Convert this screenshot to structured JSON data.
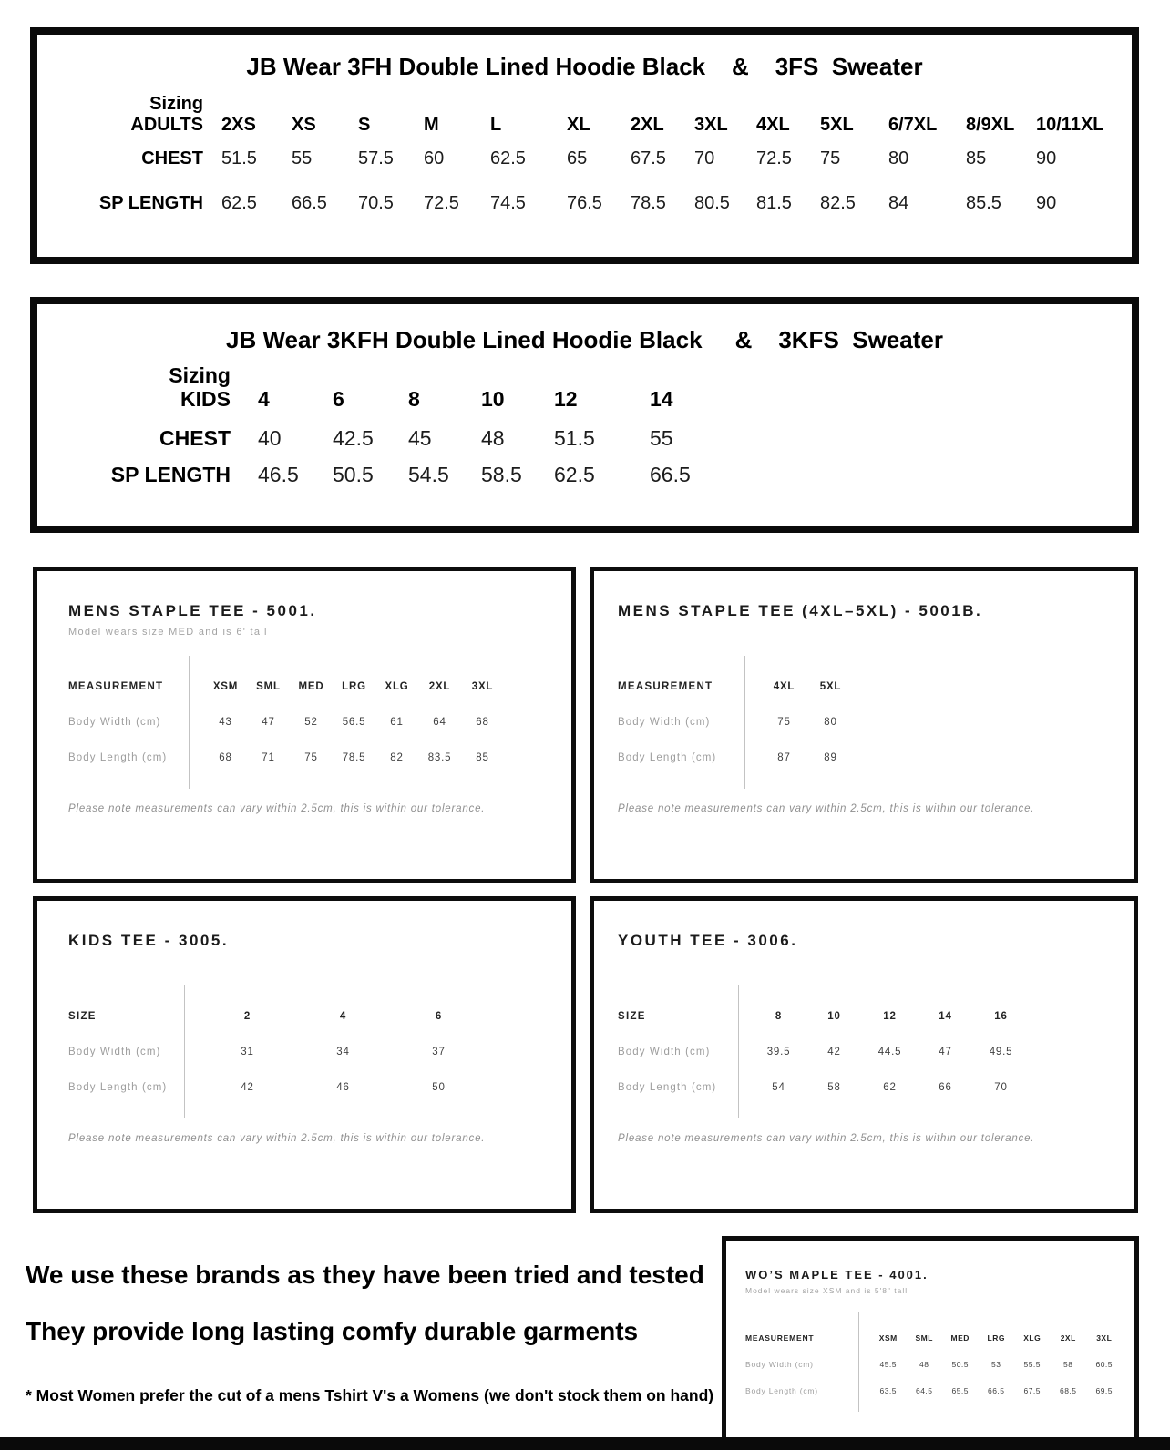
{
  "palette": {
    "border_black": "#0a0a0a",
    "text_black": "#000000",
    "muted_gray": "#9d9d9d",
    "value_gray": "#3f3f3f",
    "note_gray": "#8f8f8f"
  },
  "hoodie_adult": {
    "title": "JB Wear 3FH Double Lined Hoodie Black    &    3FS  Sweater",
    "sizing_label": "Sizing",
    "group_label": "ADULTS",
    "sizes": [
      "2XS",
      "XS",
      "S",
      "M",
      "L",
      "XL",
      "2XL",
      "3XL",
      "4XL",
      "5XL",
      "6/7XL",
      "8/9XL",
      "10/11XL"
    ],
    "rows": [
      {
        "label": "CHEST",
        "values": [
          "51.5",
          "55",
          "57.5",
          "60",
          "62.5",
          "65",
          "67.5",
          "70",
          "72.5",
          "75",
          "80",
          "85",
          "90"
        ]
      },
      {
        "label": "SP LENGTH",
        "values": [
          "62.5",
          "66.5",
          "70.5",
          "72.5",
          "74.5",
          "76.5",
          "78.5",
          "80.5",
          "81.5",
          "82.5",
          "84",
          "85.5",
          "90"
        ]
      }
    ]
  },
  "hoodie_kids": {
    "title": "JB Wear 3KFH Double Lined Hoodie Black     &    3KFS  Sweater",
    "sizing_label": "Sizing",
    "group_label": "KIDS",
    "sizes": [
      "4",
      "6",
      "8",
      "10",
      "12",
      "14"
    ],
    "rows": [
      {
        "label": "CHEST",
        "values": [
          "40",
          "42.5",
          "45",
          "48",
          "51.5",
          "55"
        ]
      },
      {
        "label": "SP LENGTH",
        "values": [
          "46.5",
          "50.5",
          "54.5",
          "58.5",
          "62.5",
          "66.5"
        ]
      }
    ]
  },
  "cards": [
    {
      "title": "MENS STAPLE TEE - 5001.",
      "subtitle": "Model wears size MED and is 6' tall",
      "header_label": "MEASUREMENT",
      "sizes": [
        "XSM",
        "SML",
        "MED",
        "LRG",
        "XLG",
        "2XL",
        "3XL"
      ],
      "rows": [
        {
          "label": "Body Width (cm)",
          "values": [
            "43",
            "47",
            "52",
            "56.5",
            "61",
            "64",
            "68"
          ]
        },
        {
          "label": "Body Length (cm)",
          "values": [
            "68",
            "71",
            "75",
            "78.5",
            "82",
            "83.5",
            "85"
          ]
        }
      ],
      "note": "Please note measurements can vary within 2.5cm, this is within our tolerance."
    },
    {
      "title": "MENS STAPLE TEE (4XL–5XL) - 5001B.",
      "subtitle": "",
      "header_label": "MEASUREMENT",
      "sizes": [
        "4XL",
        "5XL"
      ],
      "rows": [
        {
          "label": "Body Width (cm)",
          "values": [
            "75",
            "80"
          ]
        },
        {
          "label": "Body Length (cm)",
          "values": [
            "87",
            "89"
          ]
        }
      ],
      "note": "Please note measurements can vary within 2.5cm, this is within our tolerance."
    },
    {
      "title": "KIDS TEE - 3005.",
      "subtitle": "",
      "header_label": "SIZE",
      "sizes": [
        "2",
        "4",
        "6"
      ],
      "rows": [
        {
          "label": "Body Width (cm)",
          "values": [
            "31",
            "34",
            "37"
          ]
        },
        {
          "label": "Body Length (cm)",
          "values": [
            "42",
            "46",
            "50"
          ]
        }
      ],
      "note": "Please note measurements can vary within 2.5cm, this is within our tolerance."
    },
    {
      "title": "YOUTH TEE - 3006.",
      "subtitle": "",
      "header_label": "SIZE",
      "sizes": [
        "8",
        "10",
        "12",
        "14",
        "16"
      ],
      "rows": [
        {
          "label": "Body Width (cm)",
          "values": [
            "39.5",
            "42",
            "44.5",
            "47",
            "49.5"
          ]
        },
        {
          "label": "Body Length (cm)",
          "values": [
            "54",
            "58",
            "62",
            "66",
            "70"
          ]
        }
      ],
      "note": "Please note measurements can vary within 2.5cm, this is within our tolerance."
    },
    {
      "title": "WO’S MAPLE TEE - 4001.",
      "subtitle": "Model wears size XSM and is 5'8\" tall",
      "header_label": "MEASUREMENT",
      "sizes": [
        "XSM",
        "SML",
        "MED",
        "LRG",
        "XLG",
        "2XL",
        "3XL"
      ],
      "rows": [
        {
          "label": "Body Width (cm)",
          "values": [
            "45.5",
            "48",
            "50.5",
            "53",
            "55.5",
            "58",
            "60.5"
          ]
        },
        {
          "label": "Body Length (cm)",
          "values": [
            "63.5",
            "64.5",
            "65.5",
            "66.5",
            "67.5",
            "68.5",
            "69.5"
          ]
        }
      ],
      "note": ""
    }
  ],
  "footer": {
    "line1": "We use these brands as they have been tried and tested",
    "line2": "They provide long lasting comfy durable garments",
    "line3": "* Most Women prefer the cut of a mens Tshirt V's a Womens (we don't stock them on hand)"
  }
}
